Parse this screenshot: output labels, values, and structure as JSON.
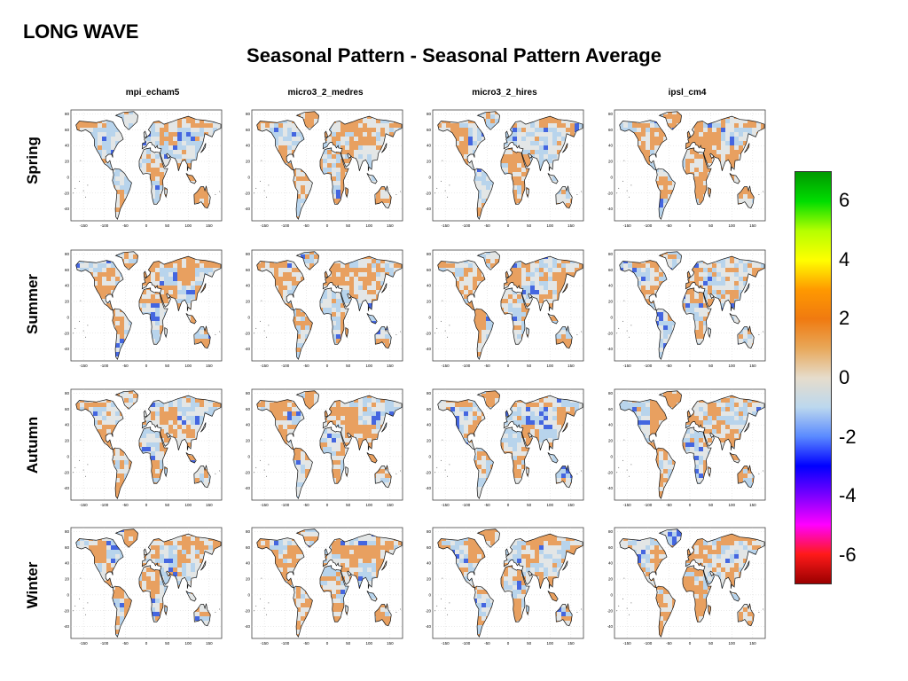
{
  "heading": "LONG WAVE",
  "title": "Seasonal Pattern - Seasonal Pattern Average",
  "models": [
    "mpi_echam5",
    "micro3_2_medres",
    "micro3_2_hires",
    "ipsl_cm4"
  ],
  "seasons": [
    "Spring",
    "Summer",
    "Autumn",
    "Winter"
  ],
  "x_ticks": [
    "-150",
    "-100",
    "-50",
    "0",
    "50",
    "100",
    "150"
  ],
  "y_ticks": [
    "80",
    "60",
    "40",
    "20",
    "0",
    "-20",
    "-40"
  ],
  "colorbar": {
    "ticks": [
      "6",
      "4",
      "2",
      "0",
      "-2",
      "-4",
      "-6"
    ],
    "range": [
      -7,
      7
    ],
    "colors": [
      "#9a0000",
      "#ff1a1a",
      "#ff00ff",
      "#7a00ff",
      "#0000ff",
      "#5a8aff",
      "#bcd8ee",
      "#e6dccb",
      "#e8a85a",
      "#f07a10",
      "#ff9900",
      "#ffff00",
      "#b5ff00",
      "#00dd00",
      "#009900"
    ]
  },
  "map_colors": {
    "land_warm": "#e8a060",
    "land_neutral": "#e3e6e6",
    "land_cool": "#b8d4ec",
    "land_cold": "#4466e0",
    "coast": "#111111",
    "grid": "#cccccc"
  }
}
